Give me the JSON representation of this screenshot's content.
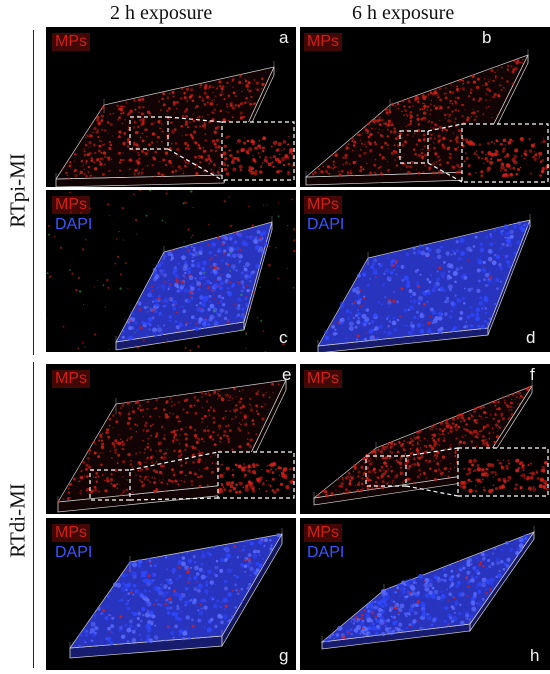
{
  "column_headers": [
    "2 h exposure",
    "6 h exposure"
  ],
  "row_labels": [
    "RTpi-MI",
    "RTdi-MI"
  ],
  "channel_labels": {
    "mps": "MPs",
    "dapi": "DAPI"
  },
  "colors": {
    "mps": "#d0201a",
    "dapi": "#2f47ff",
    "background": "#000000",
    "frame": "#cfcfcf"
  },
  "panels": [
    {
      "letter": "a",
      "channels": [
        "mps"
      ],
      "inset": true
    },
    {
      "letter": "b",
      "channels": [
        "mps"
      ],
      "inset": true
    },
    {
      "letter": "c",
      "channels": [
        "mps",
        "dapi"
      ],
      "inset": false
    },
    {
      "letter": "d",
      "channels": [
        "mps",
        "dapi"
      ],
      "inset": false
    },
    {
      "letter": "e",
      "channels": [
        "mps"
      ],
      "inset": true
    },
    {
      "letter": "f",
      "channels": [
        "mps"
      ],
      "inset": true
    },
    {
      "letter": "g",
      "channels": [
        "mps",
        "dapi"
      ],
      "inset": false
    },
    {
      "letter": "h",
      "channels": [
        "mps",
        "dapi"
      ],
      "inset": false
    }
  ]
}
